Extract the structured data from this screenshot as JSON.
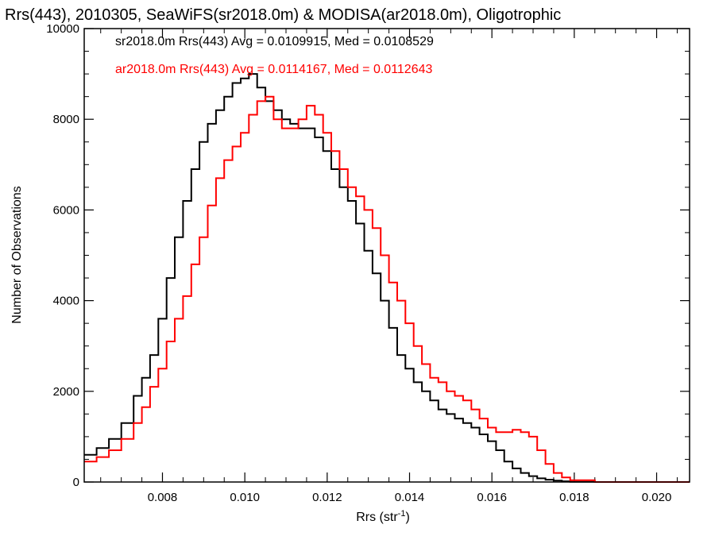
{
  "chart_data": {
    "type": "line",
    "title": "Rrs(443), 2010305, SeaWiFS(sr2018.0m) & MODISA(ar2018.0m), Oligotrophic",
    "xlabel": "Rrs (str",
    "xlabel_sup": "-1",
    "xlabel_close": ")",
    "ylabel": "Number of Observations",
    "xlim": [
      0.0061,
      0.0208
    ],
    "ylim": [
      0,
      10000
    ],
    "x_ticks": [
      0.008,
      0.01,
      0.012,
      0.014,
      0.016,
      0.018,
      0.02
    ],
    "x_tick_labels": [
      "0.008",
      "0.010",
      "0.012",
      "0.014",
      "0.016",
      "0.018",
      "0.020"
    ],
    "y_ticks": [
      0,
      2000,
      4000,
      6000,
      8000,
      10000
    ],
    "y_tick_labels": [
      "0",
      "2000",
      "4000",
      "6000",
      "8000",
      "10000"
    ],
    "grid": false,
    "legend_position": "top-left",
    "series": [
      {
        "name": "sr2018.0m Rrs(443) Avg = 0.0109915, Med = 0.0108529",
        "color": "#000000",
        "points": [
          [
            0.0061,
            600
          ],
          [
            0.0064,
            750
          ],
          [
            0.0067,
            950
          ],
          [
            0.007,
            1300
          ],
          [
            0.0073,
            1900
          ],
          [
            0.0075,
            2300
          ],
          [
            0.0077,
            2800
          ],
          [
            0.0079,
            3600
          ],
          [
            0.0081,
            4500
          ],
          [
            0.0083,
            5400
          ],
          [
            0.0085,
            6200
          ],
          [
            0.0087,
            6900
          ],
          [
            0.0089,
            7500
          ],
          [
            0.0091,
            7900
          ],
          [
            0.0093,
            8200
          ],
          [
            0.0095,
            8500
          ],
          [
            0.0097,
            8800
          ],
          [
            0.0099,
            8900
          ],
          [
            0.0101,
            9000
          ],
          [
            0.0103,
            8700
          ],
          [
            0.0105,
            8400
          ],
          [
            0.0107,
            8200
          ],
          [
            0.0109,
            8000
          ],
          [
            0.0111,
            7900
          ],
          [
            0.0113,
            7800
          ],
          [
            0.0115,
            7800
          ],
          [
            0.0117,
            7600
          ],
          [
            0.0119,
            7300
          ],
          [
            0.0121,
            6900
          ],
          [
            0.0123,
            6500
          ],
          [
            0.0125,
            6200
          ],
          [
            0.0127,
            5700
          ],
          [
            0.0129,
            5100
          ],
          [
            0.0131,
            4600
          ],
          [
            0.0133,
            4000
          ],
          [
            0.0135,
            3400
          ],
          [
            0.0137,
            2800
          ],
          [
            0.0139,
            2500
          ],
          [
            0.0141,
            2200
          ],
          [
            0.0143,
            2000
          ],
          [
            0.0145,
            1800
          ],
          [
            0.0147,
            1600
          ],
          [
            0.0149,
            1500
          ],
          [
            0.0151,
            1400
          ],
          [
            0.0153,
            1300
          ],
          [
            0.0155,
            1200
          ],
          [
            0.0157,
            1050
          ],
          [
            0.0159,
            900
          ],
          [
            0.0161,
            700
          ],
          [
            0.0163,
            450
          ],
          [
            0.0165,
            300
          ],
          [
            0.0167,
            200
          ],
          [
            0.0169,
            130
          ],
          [
            0.0171,
            80
          ],
          [
            0.0173,
            50
          ],
          [
            0.0175,
            30
          ],
          [
            0.0177,
            15
          ],
          [
            0.0179,
            5
          ],
          [
            0.0185,
            0
          ],
          [
            0.0208,
            0
          ]
        ]
      },
      {
        "name": "ar2018.0m Rrs(443) Avg = 0.0114167, Med = 0.0112643",
        "color": "#ff0000",
        "points": [
          [
            0.0061,
            450
          ],
          [
            0.0064,
            550
          ],
          [
            0.0067,
            700
          ],
          [
            0.007,
            950
          ],
          [
            0.0073,
            1300
          ],
          [
            0.0075,
            1650
          ],
          [
            0.0077,
            2100
          ],
          [
            0.0079,
            2500
          ],
          [
            0.0081,
            3100
          ],
          [
            0.0083,
            3600
          ],
          [
            0.0085,
            4100
          ],
          [
            0.0087,
            4800
          ],
          [
            0.0089,
            5400
          ],
          [
            0.0091,
            6100
          ],
          [
            0.0093,
            6700
          ],
          [
            0.0095,
            7100
          ],
          [
            0.0097,
            7400
          ],
          [
            0.0099,
            7700
          ],
          [
            0.0101,
            8100
          ],
          [
            0.0103,
            8400
          ],
          [
            0.0105,
            8500
          ],
          [
            0.0107,
            8000
          ],
          [
            0.0109,
            7800
          ],
          [
            0.0111,
            7800
          ],
          [
            0.0113,
            8000
          ],
          [
            0.0115,
            8300
          ],
          [
            0.0117,
            8100
          ],
          [
            0.0119,
            7700
          ],
          [
            0.0121,
            7300
          ],
          [
            0.0123,
            6900
          ],
          [
            0.0125,
            6500
          ],
          [
            0.0127,
            6300
          ],
          [
            0.0129,
            6000
          ],
          [
            0.0131,
            5600
          ],
          [
            0.0133,
            5000
          ],
          [
            0.0135,
            4400
          ],
          [
            0.0137,
            4000
          ],
          [
            0.0139,
            3500
          ],
          [
            0.0141,
            3000
          ],
          [
            0.0143,
            2600
          ],
          [
            0.0145,
            2300
          ],
          [
            0.0147,
            2200
          ],
          [
            0.0149,
            2000
          ],
          [
            0.0151,
            1900
          ],
          [
            0.0153,
            1800
          ],
          [
            0.0155,
            1600
          ],
          [
            0.0157,
            1400
          ],
          [
            0.0159,
            1200
          ],
          [
            0.0161,
            1100
          ],
          [
            0.0163,
            1100
          ],
          [
            0.0165,
            1150
          ],
          [
            0.0167,
            1100
          ],
          [
            0.0169,
            1000
          ],
          [
            0.0171,
            700
          ],
          [
            0.0173,
            400
          ],
          [
            0.0175,
            200
          ],
          [
            0.0177,
            100
          ],
          [
            0.0179,
            40
          ],
          [
            0.0185,
            0
          ],
          [
            0.0208,
            0
          ]
        ]
      }
    ]
  }
}
